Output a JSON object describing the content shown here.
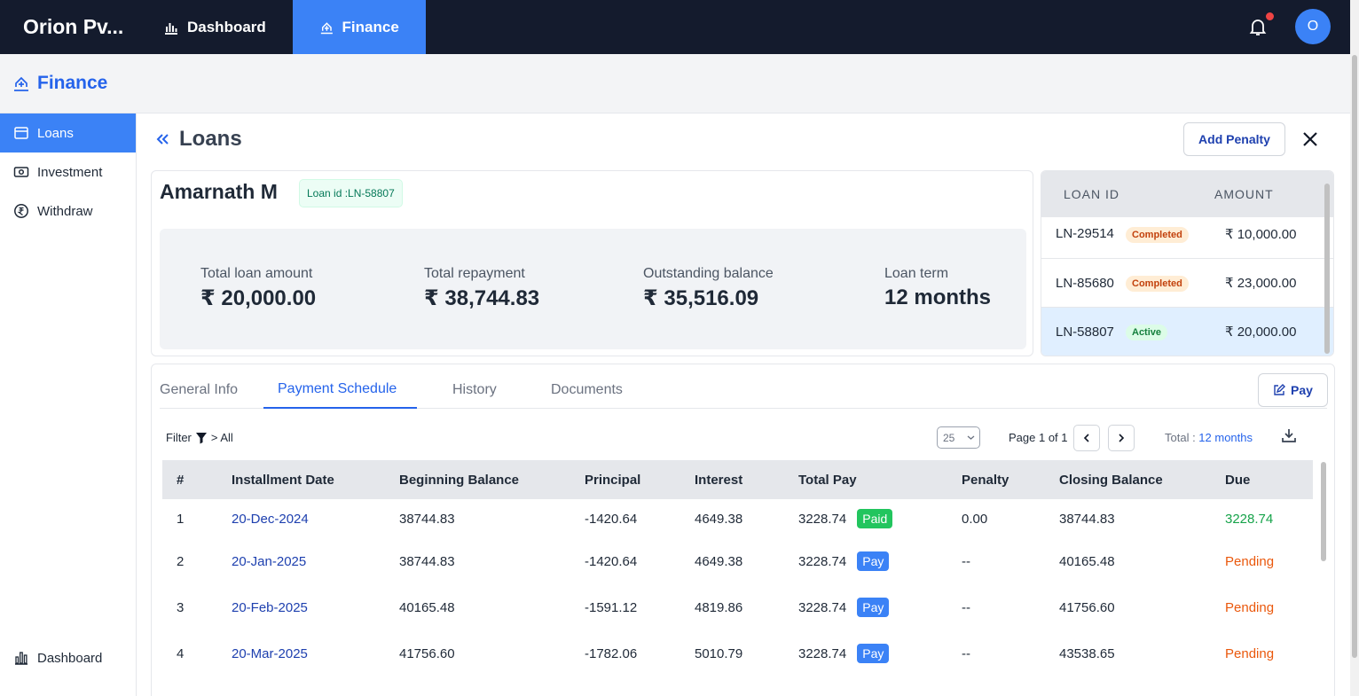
{
  "app": {
    "brand": "Orion Pv...",
    "nav": [
      {
        "label": "Dashboard",
        "icon": "bar-chart-icon"
      },
      {
        "label": "Finance",
        "icon": "finance-icon"
      }
    ],
    "avatar_initial": "O"
  },
  "section": {
    "title": "Finance"
  },
  "sidebar": {
    "items": [
      {
        "label": "Loans",
        "icon": "wallet-icon"
      },
      {
        "label": "Investment",
        "icon": "money-icon"
      },
      {
        "label": "Withdraw",
        "icon": "rupee-circle-icon"
      }
    ],
    "bottom": {
      "label": "Dashboard",
      "icon": "bar-chart-icon"
    }
  },
  "page": {
    "title": "Loans",
    "add_penalty": "Add Penalty"
  },
  "loan": {
    "borrower": "Amarnath M",
    "badge": "Loan id :LN-58807",
    "stats": [
      {
        "label": "Total loan amount",
        "value": "₹ 20,000.00"
      },
      {
        "label": "Total repayment",
        "value": "₹ 38,744.83"
      },
      {
        "label": "Outstanding balance",
        "value": "₹ 35,516.09"
      },
      {
        "label": "Loan term",
        "value": "12 months"
      }
    ]
  },
  "loan_list": {
    "headers": [
      "LOAN ID",
      "AMOUNT"
    ],
    "rows": [
      {
        "id": "LN-29514",
        "status": "Completed",
        "amount": "₹ 10,000.00"
      },
      {
        "id": "LN-85680",
        "status": "Completed",
        "amount": "₹ 23,000.00"
      },
      {
        "id": "LN-58807",
        "status": "Active",
        "amount": "₹ 20,000.00"
      }
    ]
  },
  "tabs": {
    "items": [
      "General Info",
      "Payment Schedule",
      "History",
      "Documents"
    ],
    "active": "Payment Schedule",
    "pay_label": "Pay"
  },
  "toolbar": {
    "filter_label": "Filter",
    "filter_value": "> All",
    "page_size": "25",
    "page_info": "Page 1 of 1",
    "total_label": "Total : ",
    "total_value": "12 months"
  },
  "schedule": {
    "headers": [
      "#",
      "Installment Date",
      "Beginning Balance",
      "Principal",
      "Interest",
      "Total Pay",
      "Penalty",
      "Closing Balance",
      "Due"
    ],
    "rows": [
      {
        "n": "1",
        "date": "20-Dec-2024",
        "begin": "38744.83",
        "principal": "-1420.64",
        "interest": "4649.38",
        "total": "3228.74",
        "action": "Paid",
        "penalty": "0.00",
        "closing": "38744.83",
        "due": "3228.74"
      },
      {
        "n": "2",
        "date": "20-Jan-2025",
        "begin": "38744.83",
        "principal": "-1420.64",
        "interest": "4649.38",
        "total": "3228.74",
        "action": "Pay",
        "penalty": "--",
        "closing": "40165.48",
        "due": "Pending"
      },
      {
        "n": "3",
        "date": "20-Feb-2025",
        "begin": "40165.48",
        "principal": "-1591.12",
        "interest": "4819.86",
        "total": "3228.74",
        "action": "Pay",
        "penalty": "--",
        "closing": "41756.60",
        "due": "Pending"
      },
      {
        "n": "4",
        "date": "20-Mar-2025",
        "begin": "41756.60",
        "principal": "-1782.06",
        "interest": "5010.79",
        "total": "3228.74",
        "action": "Pay",
        "penalty": "--",
        "closing": "43538.65",
        "due": "Pending"
      }
    ]
  }
}
